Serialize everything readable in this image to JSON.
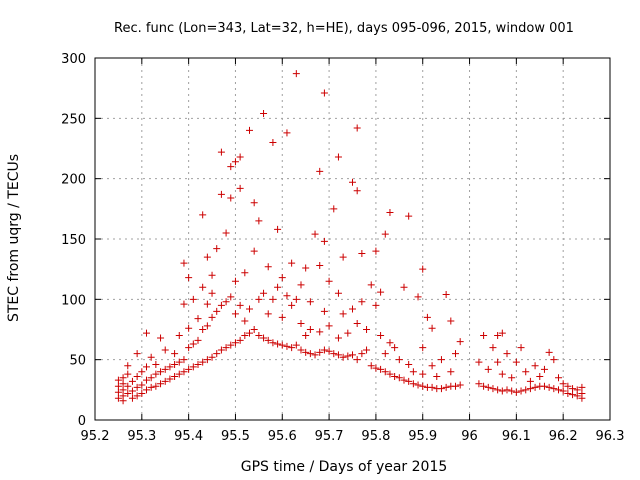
{
  "chart_data": {
    "type": "scatter",
    "title": "Rec. func (Lon=343, Lat=32, h=HE), days 095-096, 2015, window 001",
    "xlabel": "GPS time / Days of year 2015",
    "ylabel": "STEC from uqrg / TECUs",
    "xlim": [
      95.2,
      96.3
    ],
    "ylim": [
      0,
      300
    ],
    "xticks": [
      "95.2",
      "95.3",
      "95.4",
      "95.5",
      "95.6",
      "95.7",
      "95.8",
      "95.9",
      "96",
      "96.1",
      "96.2",
      "96.3"
    ],
    "yticks": [
      "0",
      "50",
      "100",
      "150",
      "200",
      "250",
      "300"
    ],
    "grid": true,
    "marker": "+",
    "marker_color": "#cc0000",
    "points": [
      [
        95.25,
        18
      ],
      [
        95.25,
        23
      ],
      [
        95.25,
        28
      ],
      [
        95.25,
        33
      ],
      [
        95.26,
        16
      ],
      [
        95.26,
        20
      ],
      [
        95.26,
        25
      ],
      [
        95.26,
        30
      ],
      [
        95.26,
        35
      ],
      [
        95.27,
        22
      ],
      [
        95.27,
        28
      ],
      [
        95.27,
        38
      ],
      [
        95.27,
        45
      ],
      [
        95.28,
        18
      ],
      [
        95.28,
        24
      ],
      [
        95.28,
        32
      ],
      [
        95.29,
        20
      ],
      [
        95.29,
        27
      ],
      [
        95.29,
        36
      ],
      [
        95.29,
        55
      ],
      [
        95.3,
        22
      ],
      [
        95.3,
        29
      ],
      [
        95.3,
        40
      ],
      [
        95.31,
        25
      ],
      [
        95.31,
        33
      ],
      [
        95.31,
        44
      ],
      [
        95.31,
        72
      ],
      [
        95.32,
        27
      ],
      [
        95.32,
        35
      ],
      [
        95.32,
        52
      ],
      [
        95.33,
        28
      ],
      [
        95.33,
        38
      ],
      [
        95.33,
        46
      ],
      [
        95.34,
        30
      ],
      [
        95.34,
        40
      ],
      [
        95.34,
        68
      ],
      [
        95.35,
        32
      ],
      [
        95.35,
        42
      ],
      [
        95.35,
        58
      ],
      [
        95.36,
        34
      ],
      [
        95.36,
        44
      ],
      [
        95.37,
        36
      ],
      [
        95.37,
        46
      ],
      [
        95.37,
        55
      ],
      [
        95.38,
        38
      ],
      [
        95.38,
        48
      ],
      [
        95.38,
        70
      ],
      [
        95.39,
        40
      ],
      [
        95.39,
        50
      ],
      [
        95.39,
        96
      ],
      [
        95.39,
        130
      ],
      [
        95.4,
        42
      ],
      [
        95.4,
        60
      ],
      [
        95.4,
        76
      ],
      [
        95.4,
        118
      ],
      [
        95.41,
        44
      ],
      [
        95.41,
        63
      ],
      [
        95.41,
        100
      ],
      [
        95.42,
        46
      ],
      [
        95.42,
        66
      ],
      [
        95.42,
        84
      ],
      [
        95.43,
        48
      ],
      [
        95.43,
        75
      ],
      [
        95.43,
        110
      ],
      [
        95.43,
        170
      ],
      [
        95.44,
        50
      ],
      [
        95.44,
        78
      ],
      [
        95.44,
        96
      ],
      [
        95.44,
        135
      ],
      [
        95.45,
        52
      ],
      [
        95.45,
        85
      ],
      [
        95.45,
        105
      ],
      [
        95.45,
        120
      ],
      [
        95.46,
        55
      ],
      [
        95.46,
        90
      ],
      [
        95.46,
        142
      ],
      [
        95.47,
        58
      ],
      [
        95.47,
        95
      ],
      [
        95.47,
        187
      ],
      [
        95.47,
        222
      ],
      [
        95.48,
        60
      ],
      [
        95.48,
        98
      ],
      [
        95.48,
        155
      ],
      [
        95.49,
        62
      ],
      [
        95.49,
        102
      ],
      [
        95.49,
        184
      ],
      [
        95.49,
        210
      ],
      [
        95.5,
        64
      ],
      [
        95.5,
        88
      ],
      [
        95.5,
        115
      ],
      [
        95.5,
        214
      ],
      [
        95.51,
        66
      ],
      [
        95.51,
        95
      ],
      [
        95.51,
        192
      ],
      [
        95.51,
        218
      ],
      [
        95.52,
        70
      ],
      [
        95.52,
        82
      ],
      [
        95.52,
        122
      ],
      [
        95.53,
        72
      ],
      [
        95.53,
        92
      ],
      [
        95.53,
        240
      ],
      [
        95.54,
        75
      ],
      [
        95.54,
        140
      ],
      [
        95.54,
        180
      ],
      [
        95.55,
        70
      ],
      [
        95.55,
        100
      ],
      [
        95.55,
        165
      ],
      [
        95.56,
        68
      ],
      [
        95.56,
        105
      ],
      [
        95.56,
        254
      ],
      [
        95.57,
        66
      ],
      [
        95.57,
        88
      ],
      [
        95.57,
        127
      ],
      [
        95.58,
        64
      ],
      [
        95.58,
        100
      ],
      [
        95.58,
        230
      ],
      [
        95.59,
        63
      ],
      [
        95.59,
        110
      ],
      [
        95.59,
        158
      ],
      [
        95.6,
        62
      ],
      [
        95.6,
        85
      ],
      [
        95.6,
        118
      ],
      [
        95.61,
        61
      ],
      [
        95.61,
        103
      ],
      [
        95.61,
        238
      ],
      [
        95.62,
        60
      ],
      [
        95.62,
        95
      ],
      [
        95.62,
        130
      ],
      [
        95.63,
        62
      ],
      [
        95.63,
        100
      ],
      [
        95.63,
        287
      ],
      [
        95.64,
        58
      ],
      [
        95.64,
        80
      ],
      [
        95.64,
        112
      ],
      [
        95.65,
        56
      ],
      [
        95.65,
        70
      ],
      [
        95.65,
        126
      ],
      [
        95.66,
        55
      ],
      [
        95.66,
        75
      ],
      [
        95.66,
        98
      ],
      [
        95.67,
        54
      ],
      [
        95.67,
        154
      ],
      [
        95.68,
        56
      ],
      [
        95.68,
        73
      ],
      [
        95.68,
        128
      ],
      [
        95.68,
        206
      ],
      [
        95.69,
        58
      ],
      [
        95.69,
        90
      ],
      [
        95.69,
        148
      ],
      [
        95.69,
        271
      ],
      [
        95.7,
        57
      ],
      [
        95.7,
        78
      ],
      [
        95.7,
        115
      ],
      [
        95.71,
        55
      ],
      [
        95.71,
        175
      ],
      [
        95.72,
        54
      ],
      [
        95.72,
        68
      ],
      [
        95.72,
        105
      ],
      [
        95.72,
        218
      ],
      [
        95.73,
        52
      ],
      [
        95.73,
        88
      ],
      [
        95.73,
        135
      ],
      [
        95.74,
        53
      ],
      [
        95.74,
        72
      ],
      [
        95.75,
        54
      ],
      [
        95.75,
        92
      ],
      [
        95.75,
        197
      ],
      [
        95.76,
        50
      ],
      [
        95.76,
        80
      ],
      [
        95.76,
        190
      ],
      [
        95.76,
        242
      ],
      [
        95.77,
        55
      ],
      [
        95.77,
        98
      ],
      [
        95.77,
        138
      ],
      [
        95.78,
        58
      ],
      [
        95.78,
        75
      ],
      [
        95.79,
        45
      ],
      [
        95.79,
        112
      ],
      [
        95.8,
        43
      ],
      [
        95.8,
        95
      ],
      [
        95.8,
        140
      ],
      [
        95.81,
        42
      ],
      [
        95.81,
        70
      ],
      [
        95.81,
        106
      ],
      [
        95.82,
        40
      ],
      [
        95.82,
        55
      ],
      [
        95.82,
        154
      ],
      [
        95.83,
        38
      ],
      [
        95.83,
        64
      ],
      [
        95.83,
        172
      ],
      [
        95.84,
        36
      ],
      [
        95.84,
        60
      ],
      [
        95.85,
        35
      ],
      [
        95.85,
        50
      ],
      [
        95.86,
        33
      ],
      [
        95.86,
        110
      ],
      [
        95.87,
        32
      ],
      [
        95.87,
        46
      ],
      [
        95.87,
        169
      ],
      [
        95.88,
        30
      ],
      [
        95.88,
        40
      ],
      [
        95.89,
        29
      ],
      [
        95.89,
        102
      ],
      [
        95.9,
        28
      ],
      [
        95.9,
        38
      ],
      [
        95.9,
        60
      ],
      [
        95.9,
        125
      ],
      [
        95.91,
        27
      ],
      [
        95.91,
        85
      ],
      [
        95.92,
        27
      ],
      [
        95.92,
        45
      ],
      [
        95.92,
        76
      ],
      [
        95.93,
        26
      ],
      [
        95.93,
        36
      ],
      [
        95.94,
        26
      ],
      [
        95.94,
        50
      ],
      [
        95.95,
        27
      ],
      [
        95.95,
        104
      ],
      [
        95.96,
        28
      ],
      [
        95.96,
        40
      ],
      [
        95.96,
        82
      ],
      [
        95.97,
        28
      ],
      [
        95.97,
        55
      ],
      [
        95.98,
        29
      ],
      [
        95.98,
        65
      ],
      [
        96.02,
        30
      ],
      [
        96.02,
        48
      ],
      [
        96.03,
        28
      ],
      [
        96.03,
        70
      ],
      [
        96.04,
        27
      ],
      [
        96.04,
        42
      ],
      [
        96.05,
        26
      ],
      [
        96.05,
        60
      ],
      [
        96.06,
        25
      ],
      [
        96.06,
        48
      ],
      [
        96.06,
        70
      ],
      [
        96.07,
        24
      ],
      [
        96.07,
        38
      ],
      [
        96.07,
        72
      ],
      [
        96.08,
        25
      ],
      [
        96.08,
        55
      ],
      [
        96.09,
        24
      ],
      [
        96.09,
        35
      ],
      [
        96.1,
        23
      ],
      [
        96.1,
        48
      ],
      [
        96.11,
        24
      ],
      [
        96.11,
        60
      ],
      [
        96.12,
        25
      ],
      [
        96.12,
        40
      ],
      [
        96.13,
        26
      ],
      [
        96.13,
        32
      ],
      [
        96.14,
        27
      ],
      [
        96.14,
        45
      ],
      [
        96.15,
        28
      ],
      [
        96.15,
        36
      ],
      [
        96.16,
        28
      ],
      [
        96.16,
        42
      ],
      [
        96.17,
        27
      ],
      [
        96.17,
        56
      ],
      [
        96.18,
        26
      ],
      [
        96.18,
        50
      ],
      [
        96.19,
        25
      ],
      [
        96.19,
        35
      ],
      [
        96.2,
        24
      ],
      [
        96.2,
        30
      ],
      [
        96.21,
        22
      ],
      [
        96.21,
        28
      ],
      [
        96.22,
        21
      ],
      [
        96.22,
        26
      ],
      [
        96.23,
        20
      ],
      [
        96.23,
        25
      ],
      [
        96.24,
        18
      ],
      [
        96.24,
        22
      ],
      [
        96.24,
        27
      ]
    ]
  }
}
